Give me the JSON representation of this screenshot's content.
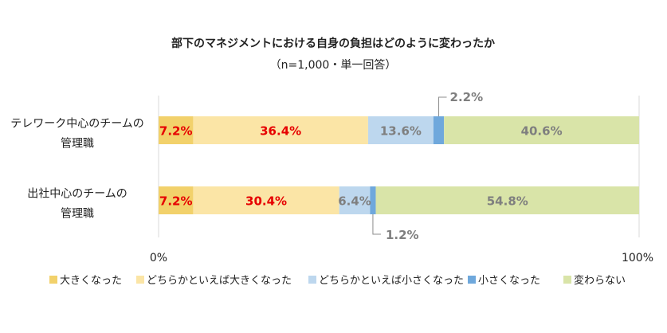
{
  "chart_data": {
    "type": "bar",
    "orientation": "horizontal",
    "stacked": true,
    "title": "部下のマネジメントにおける自身の負担はどのように変わったか",
    "subtitle": "（n=1,000・単一回答）",
    "categories": [
      [
        "テレワーク中心のチームの",
        "管理職"
      ],
      [
        "出社中心のチームの",
        "管理職"
      ]
    ],
    "series": [
      {
        "name": "大きくなった",
        "color": "#f2d16b",
        "label_color": "#e60000",
        "values": [
          7.2,
          7.2
        ],
        "labels": [
          "7.2%",
          "7.2%"
        ]
      },
      {
        "name": "どちらかといえば大きくなった",
        "color": "#fbe5a6",
        "label_color": "#e60000",
        "values": [
          36.4,
          30.4
        ],
        "labels": [
          "36.4%",
          "30.4%"
        ]
      },
      {
        "name": "どちらかといえば小さくなった",
        "color": "#bdd7ee",
        "label_color": "#7f7f7f",
        "values": [
          13.6,
          6.4
        ],
        "labels": [
          "13.6%",
          "6.4%"
        ]
      },
      {
        "name": "小さくなった",
        "color": "#6fa8dc",
        "label_color": "#7f7f7f",
        "values": [
          2.2,
          1.2
        ],
        "labels": [
          "2.2%",
          "1.2%"
        ]
      },
      {
        "name": "変わらない",
        "color": "#d9e4a8",
        "label_color": "#7f7f7f",
        "values": [
          40.6,
          54.8
        ],
        "labels": [
          "40.6%",
          "54.8%"
        ]
      }
    ],
    "xlim": [
      0,
      100
    ],
    "x_ticks": [
      "0%",
      "100%"
    ],
    "legend_position": "bottom",
    "grid": false
  }
}
